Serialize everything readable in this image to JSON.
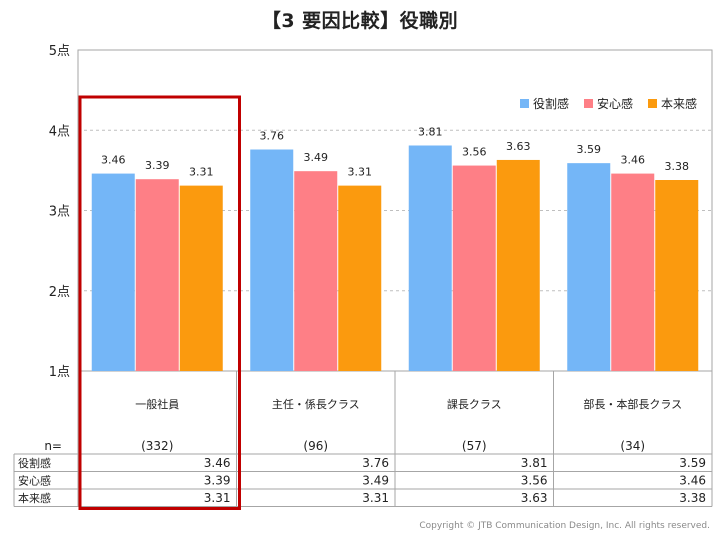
{
  "title": "【3 要因比較】役職別",
  "copyright": "Copyright © JTB Communication Design, Inc. All rights reserved.",
  "colors": {
    "series": [
      "#74b6f7",
      "#fe7f86",
      "#fb9a0e"
    ],
    "highlight": "#c00000",
    "grid": "#bfbfbf",
    "border": "#a6a6a6"
  },
  "table": {
    "n_label": "n=",
    "n_values": [
      "(332)",
      "(96)",
      "(57)",
      "(34)"
    ]
  },
  "chart_data": {
    "type": "bar",
    "categories": [
      "一般社員",
      "主任・係長クラス",
      "課長クラス",
      "部長・本部長クラス"
    ],
    "series": [
      {
        "name": "役割感",
        "values": [
          3.46,
          3.76,
          3.81,
          3.59
        ]
      },
      {
        "name": "安心感",
        "values": [
          3.39,
          3.49,
          3.56,
          3.46
        ]
      },
      {
        "name": "本来感",
        "values": [
          3.31,
          3.31,
          3.63,
          3.38
        ]
      }
    ],
    "value_labels": [
      [
        "3.46",
        "3.76",
        "3.81",
        "3.59"
      ],
      [
        "3.39",
        "3.49",
        "3.56",
        "3.46"
      ],
      [
        "3.31",
        "3.31",
        "3.63",
        "3.38"
      ]
    ],
    "ylim": [
      1,
      5
    ],
    "yticks": [
      1,
      2,
      3,
      4,
      5
    ],
    "ytick_labels": [
      "1点",
      "2点",
      "3点",
      "4点",
      "5点"
    ],
    "grid": true,
    "legend_position": "top-right",
    "highlighted_category": "一般社員"
  }
}
